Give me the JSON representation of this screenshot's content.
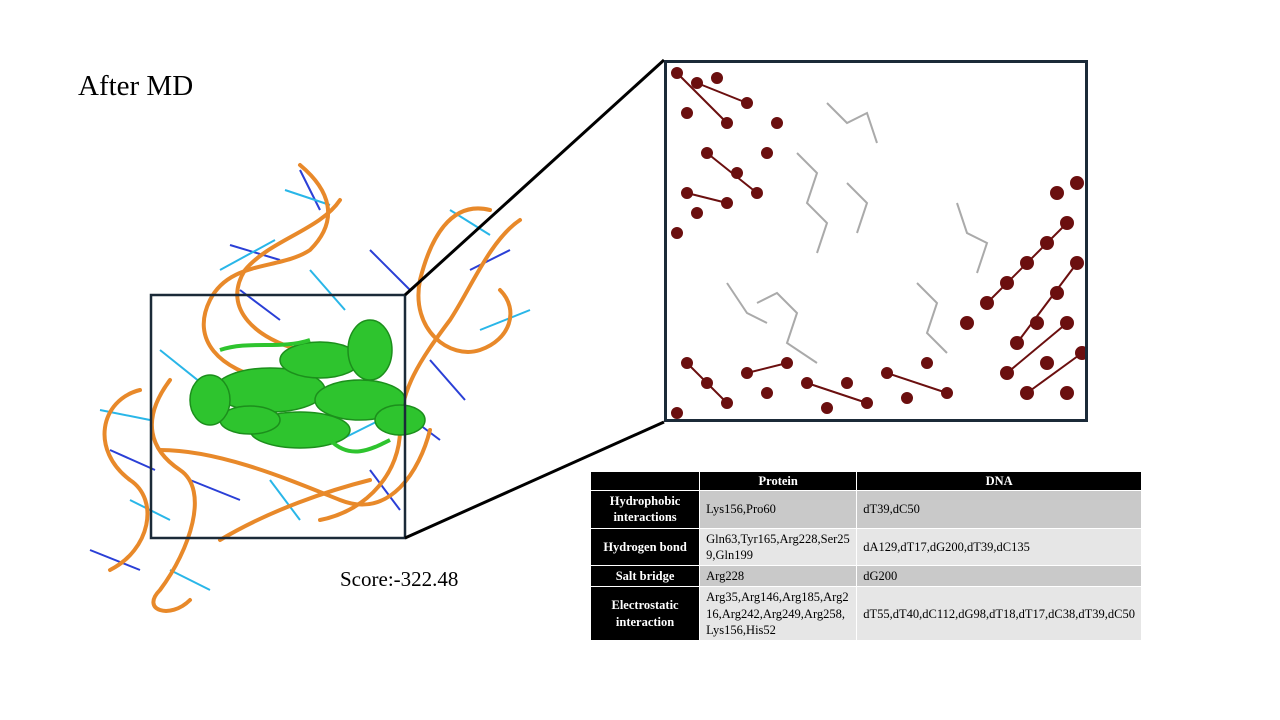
{
  "title": "After MD",
  "score": "Score:-322.48",
  "colors": {
    "dna_backbone": "#e8892a",
    "dna_bases_a": "#2a3fd6",
    "dna_bases_b": "#29b6e8",
    "protein": "#2ec42e",
    "inset_atoms": "#6b0f0f",
    "inset_sticks": "#aaaaaa",
    "frame": "#1b2a38"
  },
  "table": {
    "headers": [
      "",
      "Protein",
      "DNA"
    ],
    "rows": [
      {
        "type": "Hydrophobic interactions",
        "protein": "Lys156,Pro60",
        "dna": "dT39,dC50"
      },
      {
        "type": "Hydrogen bond",
        "protein": "Gln63,Tyr165,Arg228,Ser259,Gln199",
        "dna": "dA129,dT17,dG200,dT39,dC135"
      },
      {
        "type": "Salt bridge",
        "protein": "Arg228",
        "dna": "dG200"
      },
      {
        "type": "Electrostatic interaction",
        "protein": "Arg35,Arg146,Arg185,Arg216,Arg242,Arg249,Arg258,Lys156,His52",
        "dna": "dT55,dT40,dC112,dG98,dT18,dT17,dC38,dT39,dC50"
      }
    ]
  }
}
